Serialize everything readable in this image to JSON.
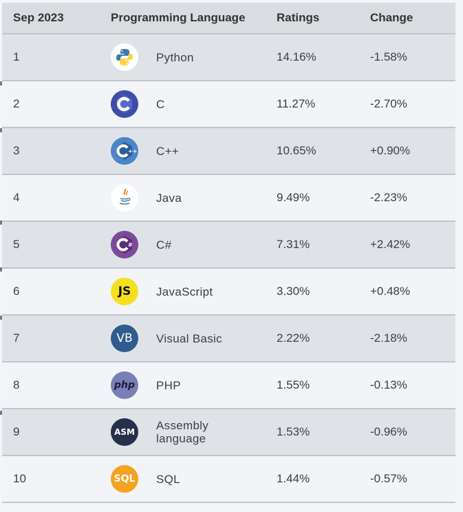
{
  "table": {
    "headers": [
      "Sep 2023",
      "Programming Language",
      "Ratings",
      "Change"
    ],
    "rows": [
      {
        "rank": "1",
        "language": "Python",
        "icon": "python-logo-icon",
        "rating": "14.16%",
        "change": "-1.58%"
      },
      {
        "rank": "2",
        "language": "C",
        "icon": "c-logo-icon",
        "rating": "11.27%",
        "change": "-2.70%"
      },
      {
        "rank": "3",
        "language": "C++",
        "icon": "cpp-logo-icon",
        "rating": "10.65%",
        "change": "+0.90%"
      },
      {
        "rank": "4",
        "language": "Java",
        "icon": "java-logo-icon",
        "rating": "9.49%",
        "change": "-2.23%"
      },
      {
        "rank": "5",
        "language": "C#",
        "icon": "csharp-logo-icon",
        "rating": "7.31%",
        "change": "+2.42%"
      },
      {
        "rank": "6",
        "language": "JavaScript",
        "icon": "javascript-logo-icon",
        "logo_text": "JS",
        "rating": "3.30%",
        "change": "+0.48%"
      },
      {
        "rank": "7",
        "language": "Visual Basic",
        "icon": "visual-basic-logo-icon",
        "logo_text": "VB",
        "rating": "2.22%",
        "change": "-2.18%"
      },
      {
        "rank": "8",
        "language": "PHP",
        "icon": "php-logo-icon",
        "logo_text": "php",
        "rating": "1.55%",
        "change": "-0.13%"
      },
      {
        "rank": "9",
        "language": "Assembly language",
        "icon": "assembly-logo-icon",
        "logo_text": "ASM",
        "rating": "1.53%",
        "change": "-0.96%"
      },
      {
        "rank": "10",
        "language": "SQL",
        "icon": "sql-logo-icon",
        "logo_text": "SQL",
        "rating": "1.44%",
        "change": "-0.57%"
      }
    ]
  },
  "colors": {
    "header_bg": "#d9dde1",
    "row_odd_bg": "#dfe3e7",
    "row_even_bg": "#f2f4f7",
    "python_blue": "#3d78aa",
    "python_yellow": "#ffd43b",
    "c_blue": "#3f4ea8",
    "cpp_blue": "#4c86c8",
    "java_red": "#e76f00",
    "csharp_purple": "#7d4a9a",
    "js_yellow": "#f6df1e",
    "vb_blue": "#2f5c8c",
    "php_purple": "#7b7fb8",
    "asm_navy": "#25304a",
    "sql_orange": "#f4a21f"
  }
}
